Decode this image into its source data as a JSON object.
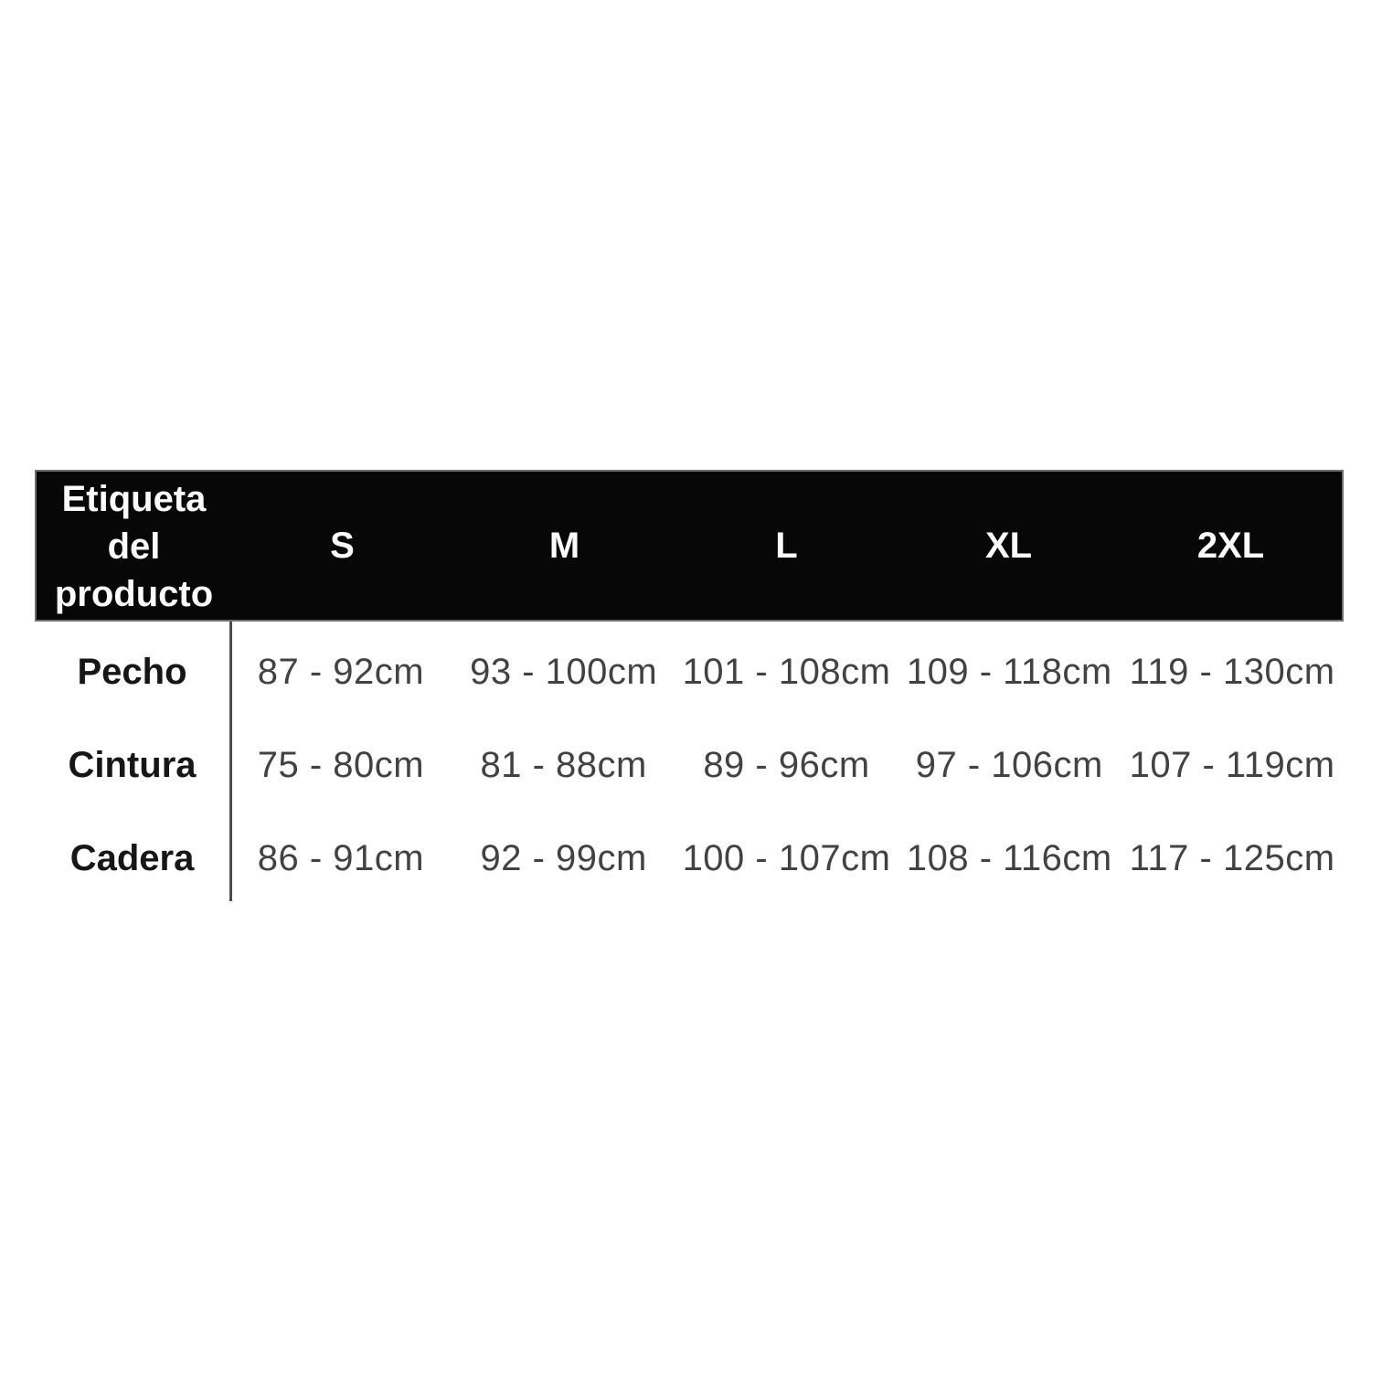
{
  "table": {
    "header": {
      "label": "Etiqueta del producto",
      "columns": [
        "S",
        "M",
        "L",
        "XL",
        "2XL"
      ]
    },
    "rows": [
      {
        "label": "Pecho",
        "values": [
          "87 - 92cm",
          "93 - 100cm",
          "101 - 108cm",
          "109 - 118cm",
          "119 - 130cm"
        ]
      },
      {
        "label": "Cintura",
        "values": [
          "75 - 80cm",
          "81 - 88cm",
          "89 - 96cm",
          "97 - 106cm",
          "107 - 119cm"
        ]
      },
      {
        "label": "Cadera",
        "values": [
          "86 - 91cm",
          "92 - 99cm",
          "100 - 107cm",
          "108 - 116cm",
          "117 - 125cm"
        ]
      }
    ],
    "colors": {
      "header_bg": "#070707",
      "header_text": "#fbfbfb",
      "header_border": "#6f6f6f",
      "label_text": "#161616",
      "data_text": "#424242",
      "divider": "#4d4d4d",
      "page_bg": "#ffffff"
    }
  }
}
